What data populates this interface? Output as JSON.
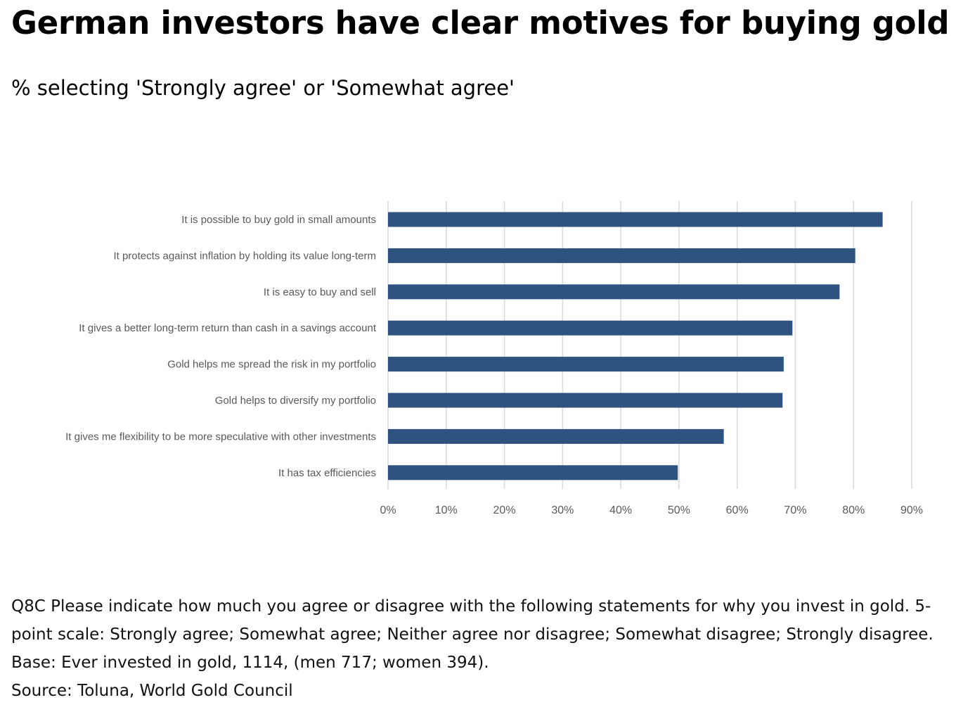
{
  "header": {
    "title": "German investors have clear motives for buying gold",
    "subtitle": "% selecting 'Strongly agree' or 'Somewhat agree'"
  },
  "chart_data": {
    "type": "bar",
    "orientation": "horizontal",
    "categories": [
      "It is possible to buy gold in small amounts",
      "It protects against inflation by holding its value long-term",
      "It is easy to buy and sell",
      "It gives a better long-term return than cash in a savings account",
      "Gold helps me spread the risk in my portfolio",
      "Gold helps to diversify my portfolio",
      "It gives me flexibility to be more speculative with other investments",
      "It has tax efficiencies"
    ],
    "values": [
      85,
      80.3,
      77.6,
      69.5,
      68,
      67.8,
      57.7,
      49.8
    ],
    "xlim": [
      0,
      90
    ],
    "xticks": [
      "0%",
      "10%",
      "20%",
      "30%",
      "40%",
      "50%",
      "60%",
      "70%",
      "80%",
      "90%"
    ],
    "grid": true,
    "legend": "none",
    "bar_color": "#2e5380"
  },
  "notes": {
    "question": "Q8C Please indicate how much you agree or disagree with the following statements for why you invest in gold. 5-point scale: Strongly agree; Somewhat agree; Neither agree nor disagree; Somewhat disagree; Strongly disagree.",
    "base": "Base: Ever invested in gold, 1114, (men 717; women 394).",
    "source": "Source: Toluna, World Gold Council"
  }
}
